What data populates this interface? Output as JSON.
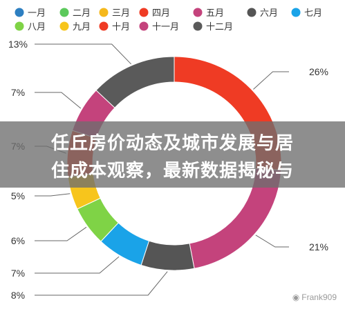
{
  "chart_data": {
    "type": "pie",
    "style": "donut",
    "legend": {
      "placement": "top",
      "entries": [
        {
          "name": "一月",
          "color": "#2d7fc1"
        },
        {
          "name": "二月",
          "color": "#5cc95c"
        },
        {
          "name": "三月",
          "color": "#f5b81c"
        },
        {
          "name": "四月",
          "color": "#ef3b24"
        },
        {
          "name": "五月",
          "color": "#c4437c"
        },
        {
          "name": "六月",
          "color": "#555555"
        },
        {
          "name": "七月",
          "color": "#1aa3e8"
        },
        {
          "name": "八月",
          "color": "#7fd346"
        },
        {
          "name": "九月",
          "color": "#f7c51c"
        },
        {
          "name": "十月",
          "color": "#ef3b24"
        },
        {
          "name": "十一月",
          "color": "#c4437c"
        },
        {
          "name": "十二月",
          "color": "#5a5a5a"
        }
      ]
    },
    "slices": [
      {
        "label": "26%",
        "value": 26,
        "color": "#ef3b24"
      },
      {
        "label": "21%",
        "value": 21,
        "color": "#c4437c"
      },
      {
        "label": "8%",
        "value": 8,
        "color": "#555555"
      },
      {
        "label": "7%",
        "value": 7,
        "color": "#1aa3e8"
      },
      {
        "label": "6%",
        "value": 6,
        "color": "#7fd346"
      },
      {
        "label": "5%",
        "value": 5,
        "color": "#f7c51c"
      },
      {
        "label": "7%",
        "value": 7,
        "color": "#ef3b24"
      },
      {
        "label": "7%",
        "value": 7,
        "color": "#c4437c"
      },
      {
        "label": "13%",
        "value": 13,
        "color": "#5a5a5a"
      }
    ]
  },
  "overlay": {
    "line1": "任丘房价动态及城市发展与居",
    "line2": "住成本观察，最新数据揭秘与"
  },
  "watermark": {
    "icon": "weibo-icon",
    "text": "Frank909"
  }
}
